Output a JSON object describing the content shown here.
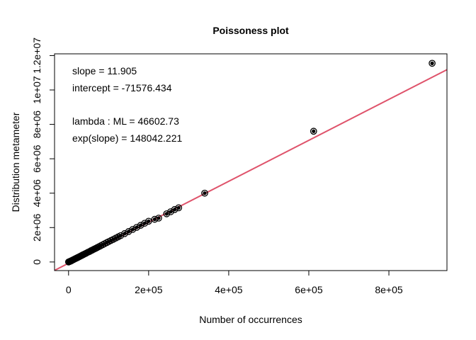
{
  "chart_data": {
    "type": "scatter",
    "title": "Poissoness plot",
    "xlabel": "Number of occurrences",
    "ylabel": "Distribution metameter",
    "xlim": [
      -35000,
      945000
    ],
    "ylim": [
      -500000,
      12100000
    ],
    "x_ticks": [
      {
        "value": 0,
        "label": "0"
      },
      {
        "value": 200000,
        "label": "2e+05"
      },
      {
        "value": 400000,
        "label": "4e+05"
      },
      {
        "value": 600000,
        "label": "6e+05"
      },
      {
        "value": 800000,
        "label": "8e+05"
      }
    ],
    "y_ticks": [
      {
        "value": 0,
        "label": "0"
      },
      {
        "value": 2000000,
        "label": "2e+06"
      },
      {
        "value": 4000000,
        "label": "4e+06"
      },
      {
        "value": 6000000,
        "label": "6e+06"
      },
      {
        "value": 8000000,
        "label": "8e+06"
      },
      {
        "value": 10000000,
        "label": "1e+07"
      },
      {
        "value": 12000000,
        "label": "1.2e+07"
      }
    ],
    "annotations": [
      "slope = 11.905",
      "intercept = -71576.434",
      "lambda : ML = 46602.73",
      "exp(slope) = 148042.221"
    ],
    "fit_line": {
      "slope": 11.905,
      "intercept": -71576.434,
      "color": "#DF536B"
    },
    "point_color": "#000000",
    "points": [
      [
        0,
        0
      ],
      [
        2000,
        20000
      ],
      [
        4000,
        40000
      ],
      [
        6000,
        60000
      ],
      [
        8000,
        85000
      ],
      [
        10000,
        110000
      ],
      [
        13000,
        145000
      ],
      [
        16000,
        180000
      ],
      [
        19000,
        215000
      ],
      [
        22000,
        250000
      ],
      [
        25000,
        285000
      ],
      [
        28000,
        320000
      ],
      [
        31000,
        355000
      ],
      [
        34000,
        395000
      ],
      [
        37000,
        430000
      ],
      [
        40000,
        465000
      ],
      [
        44000,
        510000
      ],
      [
        48000,
        560000
      ],
      [
        52000,
        605000
      ],
      [
        56000,
        655000
      ],
      [
        60000,
        700000
      ],
      [
        64000,
        750000
      ],
      [
        68000,
        795000
      ],
      [
        72000,
        845000
      ],
      [
        76000,
        890000
      ],
      [
        80000,
        940000
      ],
      [
        85000,
        1000000
      ],
      [
        90000,
        1060000
      ],
      [
        95000,
        1120000
      ],
      [
        100000,
        1180000
      ],
      [
        106000,
        1250000
      ],
      [
        112000,
        1320000
      ],
      [
        118000,
        1390000
      ],
      [
        124000,
        1460000
      ],
      [
        130000,
        1530000
      ],
      [
        140000,
        1650000
      ],
      [
        150000,
        1770000
      ],
      [
        160000,
        1890000
      ],
      [
        170000,
        2010000
      ],
      [
        180000,
        2130000
      ],
      [
        190000,
        2250000
      ],
      [
        200000,
        2370000
      ],
      [
        215000,
        2480000
      ],
      [
        225000,
        2550000
      ],
      [
        245000,
        2800000
      ],
      [
        255000,
        2920000
      ],
      [
        265000,
        3050000
      ],
      [
        275000,
        3150000
      ],
      [
        340000,
        4000000
      ],
      [
        612000,
        7600000
      ],
      [
        908000,
        11550000
      ]
    ]
  }
}
